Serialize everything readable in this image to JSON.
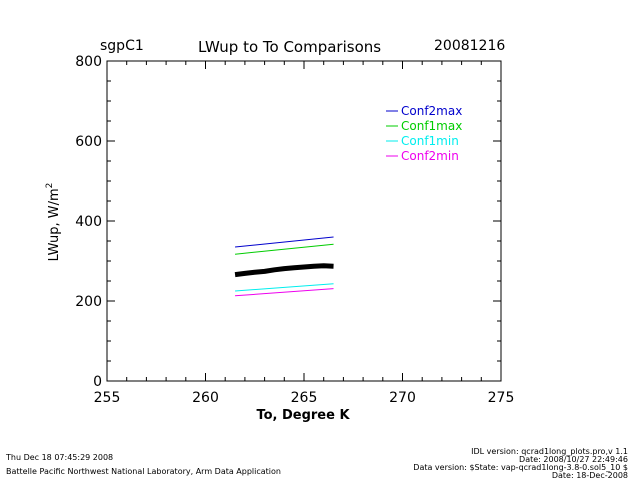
{
  "header": {
    "site": "sgpC1",
    "title": "LWup to To Comparisons",
    "date": "20081216"
  },
  "footer": {
    "timestamp": "Thu Dec 18 07:45:29 2008",
    "lab": "Battelle Pacific Northwest National Laboratory, Arm Data Application",
    "idl_version": "IDL version: qcrad1long_plots.pro,v 1.1",
    "idl_date": "Date: 2008/10/27 22:49:46",
    "data_version": "Data version: $State: vap-qcrad1long-3.8-0.sol5_10 $",
    "data_date": "Date: 18-Dec-2008"
  },
  "chart_data": {
    "type": "line",
    "title": "LWup to To Comparisons",
    "xlabel": "To, Degree K",
    "ylabel": "LWup, W/m",
    "ylabel_sup": "2",
    "xlim": [
      255,
      275
    ],
    "ylim": [
      0,
      800
    ],
    "xticks": [
      255,
      260,
      265,
      270,
      275
    ],
    "yticks": [
      0,
      200,
      400,
      600,
      800
    ],
    "x_minor_step": 1,
    "y_minor_step": 50,
    "legend_position": "top-right",
    "series": [
      {
        "name": "Conf2max",
        "color": "#0000cc",
        "x": [
          261.5,
          266.5
        ],
        "y": [
          335,
          360
        ]
      },
      {
        "name": "Conf1max",
        "color": "#00cc00",
        "x": [
          261.5,
          266.5
        ],
        "y": [
          317,
          342
        ]
      },
      {
        "name": "Conf1min",
        "color": "#00eeee",
        "x": [
          261.5,
          266.5
        ],
        "y": [
          225,
          243
        ]
      },
      {
        "name": "Conf2min",
        "color": "#ee00ee",
        "x": [
          261.5,
          266.5
        ],
        "y": [
          213,
          231
        ]
      }
    ],
    "observed": {
      "color": "#000000",
      "x": [
        261.5,
        262.0,
        262.5,
        263.0,
        263.5,
        264.0,
        264.5,
        265.0,
        265.5,
        266.0,
        266.5
      ],
      "y": [
        266,
        269,
        272,
        274,
        278,
        281,
        283,
        285,
        287,
        288,
        287
      ]
    }
  }
}
